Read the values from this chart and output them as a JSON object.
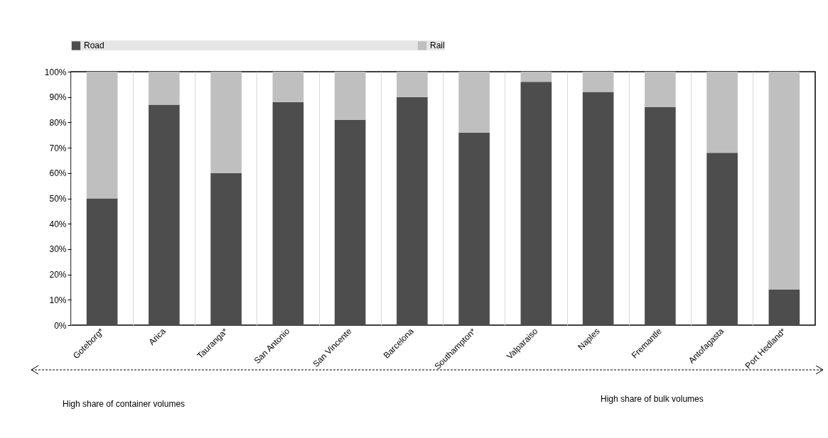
{
  "chart_data": {
    "type": "bar",
    "stacked": true,
    "categories": [
      "Goteborg*",
      "Arica",
      "Tauranga*",
      "San Antonio",
      "San Vincente",
      "Barcelona",
      "Southampton*",
      "Valparaiso",
      "Naples",
      "Fremantle",
      "Antofagasta",
      "Port Hedland*"
    ],
    "series": [
      {
        "name": "Road",
        "color": "#4d4d4d",
        "values": [
          50,
          87,
          60,
          88,
          81,
          90,
          76,
          96,
          92,
          86,
          68,
          14
        ]
      },
      {
        "name": "Rail",
        "color": "#bfbfbf",
        "values": [
          50,
          13,
          40,
          12,
          19,
          10,
          24,
          4,
          8,
          14,
          32,
          86
        ]
      }
    ],
    "ylim": [
      0,
      100
    ],
    "yticks": [
      {
        "value": 0,
        "label": "0%"
      },
      {
        "value": 10,
        "label": "10%"
      },
      {
        "value": 20,
        "label": "20%"
      },
      {
        "value": 30,
        "label": "30%"
      },
      {
        "value": 40,
        "label": "40%"
      },
      {
        "value": 50,
        "label": "50%"
      },
      {
        "value": 60,
        "label": "60%"
      },
      {
        "value": 70,
        "label": "70%"
      },
      {
        "value": 80,
        "label": "80%"
      },
      {
        "value": 90,
        "label": "90%"
      },
      {
        "value": 100,
        "label": "100%"
      }
    ],
    "grid": "x",
    "legend": "top",
    "annotations": [
      "High share of container volumes",
      "High share of bulk volumes"
    ]
  }
}
